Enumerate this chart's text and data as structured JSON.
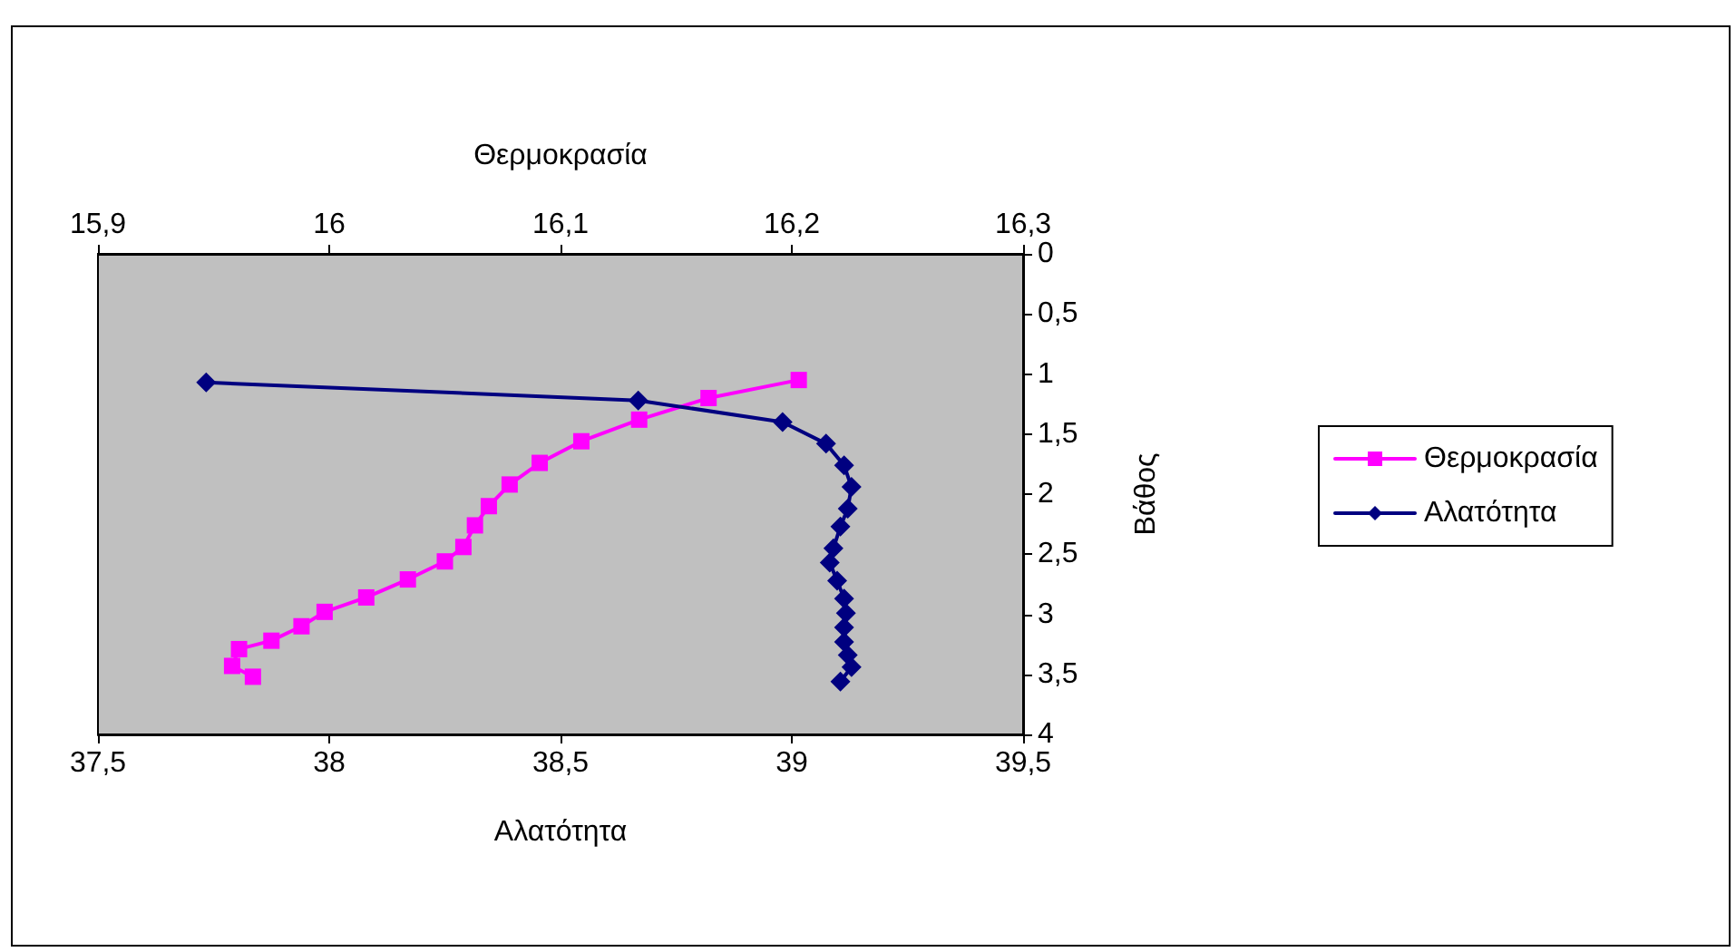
{
  "chart_data": {
    "type": "line",
    "xlabel": "Αλατότητα",
    "x2label": "Θερμοκρασία",
    "ylabel": "Βάθος",
    "xlim": [
      37.5,
      39.5
    ],
    "xticks": [
      {
        "value": 37.5,
        "label": "37,5"
      },
      38,
      {
        "value": 38.5,
        "label": "38,5"
      },
      39,
      {
        "value": 39.5,
        "label": "39,5"
      }
    ],
    "x2lim": [
      15.9,
      16.3
    ],
    "x2ticks": [
      {
        "value": 15.9,
        "label": "15,9"
      },
      16,
      {
        "value": 16.1,
        "label": "16,1"
      },
      {
        "value": 16.2,
        "label": "16,2"
      },
      {
        "value": 16.3,
        "label": "16,3"
      }
    ],
    "ylim": [
      4,
      0
    ],
    "yticks": [
      0,
      {
        "value": 0.5,
        "label": "0,5"
      },
      1,
      {
        "value": 1.5,
        "label": "1,5"
      },
      2,
      {
        "value": 2.5,
        "label": "2,5"
      },
      3,
      {
        "value": 3.5,
        "label": "3,5"
      },
      4
    ],
    "grid": false,
    "legend": "right",
    "series": [
      {
        "name": "Θερμοκρασία",
        "color": "#ff00ff",
        "marker": "square",
        "axis": "x2",
        "x": [
          16.203,
          16.164,
          16.134,
          16.109,
          16.091,
          16.078,
          16.069,
          16.063,
          16.058,
          16.05,
          16.034,
          16.016,
          15.998,
          15.988,
          15.975,
          15.961,
          15.958,
          15.967
        ],
        "values": [
          1.05,
          1.2,
          1.38,
          1.56,
          1.74,
          1.92,
          2.1,
          2.26,
          2.44,
          2.56,
          2.71,
          2.86,
          2.98,
          3.1,
          3.22,
          3.29,
          3.43,
          3.52
        ]
      },
      {
        "name": "Αλατότητα",
        "color": "#000080",
        "marker": "diamond",
        "x": [
          37.734,
          38.668,
          38.98,
          39.074,
          39.113,
          39.129,
          39.121,
          39.105,
          39.09,
          39.082,
          39.098,
          39.113,
          39.117,
          39.113,
          39.113,
          39.121,
          39.129,
          39.105
        ],
        "values": [
          1.07,
          1.22,
          1.4,
          1.58,
          1.76,
          1.94,
          2.12,
          2.27,
          2.45,
          2.57,
          2.72,
          2.87,
          2.99,
          3.11,
          3.23,
          3.34,
          3.44,
          3.56
        ]
      }
    ]
  }
}
